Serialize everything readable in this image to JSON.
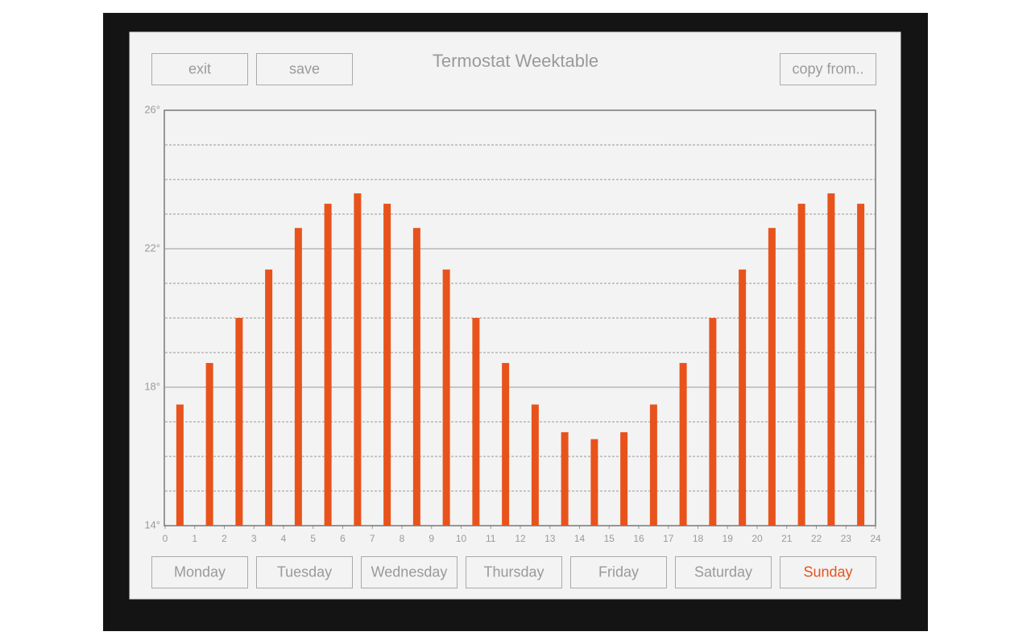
{
  "top_buttons": [
    "exit",
    "save"
  ],
  "copy_button": "copy from..",
  "chart_data": {
    "type": "bar",
    "title": "Termostat Weektable",
    "x": [
      0.5,
      1.5,
      2.5,
      3.5,
      4.5,
      5.5,
      6.5,
      7.5,
      8.5,
      9.5,
      10.5,
      11.5,
      12.5,
      13.5,
      14.5,
      15.5,
      16.5,
      17.5,
      18.5,
      19.5,
      20.5,
      21.5,
      22.5,
      23.5
    ],
    "values": [
      17.5,
      18.7,
      20.0,
      21.4,
      22.6,
      23.3,
      23.6,
      23.3,
      22.6,
      21.4,
      20.0,
      18.7,
      17.5,
      16.7,
      16.5,
      16.7,
      17.5,
      18.7,
      20.0,
      21.4,
      22.6,
      23.3,
      23.6,
      23.3
    ],
    "color": "#e8531c",
    "xlim": [
      0,
      24
    ],
    "xticks": [
      0,
      1,
      2,
      3,
      4,
      5,
      6,
      7,
      8,
      9,
      10,
      11,
      12,
      13,
      14,
      15,
      16,
      17,
      18,
      19,
      20,
      21,
      22,
      23,
      24
    ],
    "ylim": [
      14,
      26
    ],
    "yticks": [
      {
        "value": 14,
        "label": "14°"
      },
      {
        "value": 18,
        "label": "18°"
      },
      {
        "value": 22,
        "label": "22°"
      },
      {
        "value": 26,
        "label": "26°"
      }
    ],
    "minor_yticks": [
      15,
      16,
      17,
      19,
      20,
      21,
      23,
      24,
      25
    ],
    "grid": true
  },
  "days": [
    {
      "label": "Monday",
      "selected": false
    },
    {
      "label": "Tuesday",
      "selected": false
    },
    {
      "label": "Wednesday",
      "selected": false
    },
    {
      "label": "Thursday",
      "selected": false
    },
    {
      "label": "Friday",
      "selected": false
    },
    {
      "label": "Saturday",
      "selected": false
    },
    {
      "label": "Sunday",
      "selected": true
    }
  ]
}
